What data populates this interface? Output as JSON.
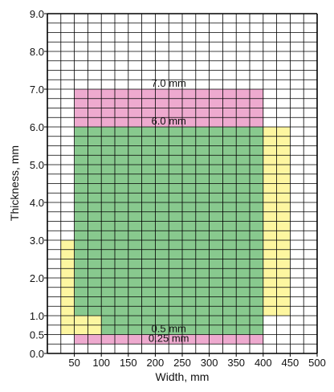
{
  "chart_data": {
    "type": "heatmap",
    "title": "",
    "xlabel": "Width, mm",
    "ylabel": "Thickness, mm",
    "xlim": [
      0,
      500
    ],
    "ylim": [
      0,
      9
    ],
    "grid": true,
    "x_cell_size": 25,
    "y_cell_size": 0.25,
    "x_ticks": [
      {
        "value": 50,
        "label": "50"
      },
      {
        "value": 100,
        "label": "100"
      },
      {
        "value": 150,
        "label": "150"
      },
      {
        "value": 200,
        "label": "200"
      },
      {
        "value": 250,
        "label": "250"
      },
      {
        "value": 300,
        "label": "300"
      },
      {
        "value": 350,
        "label": "350"
      },
      {
        "value": 400,
        "label": "400"
      },
      {
        "value": 450,
        "label": "450"
      },
      {
        "value": 500,
        "label": "500"
      }
    ],
    "y_ticks": [
      {
        "value": 0,
        "label": "0.0"
      },
      {
        "value": 0.5,
        "label": "0.5"
      },
      {
        "value": 1,
        "label": "1.0"
      },
      {
        "value": 2,
        "label": "2.0"
      },
      {
        "value": 3,
        "label": "3.0"
      },
      {
        "value": 4,
        "label": "4.0"
      },
      {
        "value": 5,
        "label": "5.0"
      },
      {
        "value": 6,
        "label": "6.0"
      },
      {
        "value": 7,
        "label": "7.0"
      },
      {
        "value": 8,
        "label": "8.0"
      },
      {
        "value": 9,
        "label": "9.0"
      }
    ],
    "colors": {
      "pink": "#eeaacf",
      "green": "#88c98e",
      "yellow": "#fdf6a0",
      "grid": "#000000"
    },
    "regions": [
      {
        "x0": 50,
        "x1": 400,
        "y0": 6,
        "y1": 7,
        "color": "pink"
      },
      {
        "x0": 50,
        "x1": 400,
        "y0": 0.25,
        "y1": 0.5,
        "color": "pink"
      },
      {
        "x0": 400,
        "x1": 450,
        "y0": 1,
        "y1": 6,
        "color": "yellow"
      },
      {
        "x0": 25,
        "x1": 50,
        "y0": 0.5,
        "y1": 3,
        "color": "yellow"
      },
      {
        "x0": 50,
        "x1": 100,
        "y0": 0.5,
        "y1": 1,
        "color": "yellow"
      },
      {
        "x0": 50,
        "x1": 400,
        "y0": 1,
        "y1": 6,
        "color": "green"
      },
      {
        "x0": 100,
        "x1": 400,
        "y0": 0.5,
        "y1": 1,
        "color": "green"
      }
    ],
    "annotations": [
      {
        "text": "7.0 mm",
        "x": 225,
        "y": 7.0
      },
      {
        "text": "6.0 mm",
        "x": 225,
        "y": 6.0
      },
      {
        "text": "0.5 mm",
        "x": 225,
        "y": 0.5
      },
      {
        "text": "0.25 mm",
        "x": 225,
        "y": 0.25
      }
    ]
  }
}
